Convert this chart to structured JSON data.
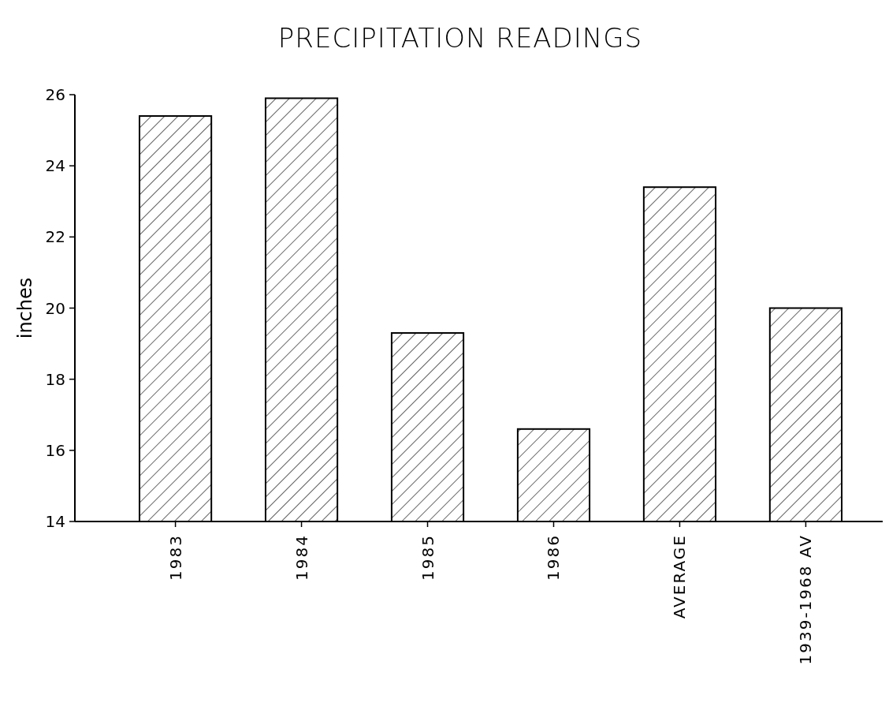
{
  "chart_data": {
    "type": "bar",
    "title": "PRECIPITATION READINGS",
    "ylabel": "inches",
    "categories": [
      "1983",
      "1984",
      "1985",
      "1986",
      "AVERAGE",
      "1939-1968 AV"
    ],
    "values": [
      25.4,
      25.9,
      19.3,
      16.6,
      23.4,
      20.0
    ],
    "color": "#000000",
    "ylim": [
      14,
      26
    ],
    "yticks": [
      14,
      16,
      18,
      20,
      22,
      24,
      26
    ],
    "grid": false
  }
}
